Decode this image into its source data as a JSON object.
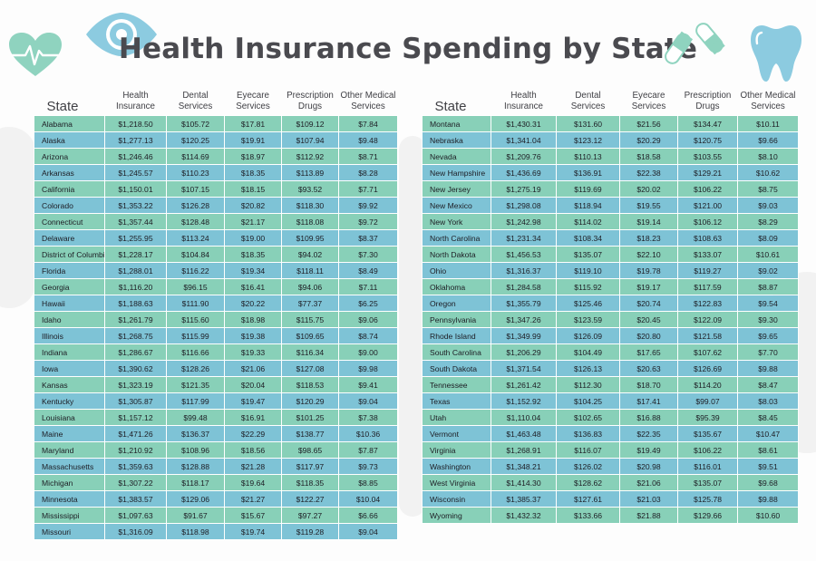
{
  "title": "Health Insurance Spending by State",
  "colors": {
    "row_green": "#88d0b8",
    "row_blue": "#7ec3d6",
    "title": "#4a4a4f",
    "icon_mint": "#8fd3bf",
    "icon_blue": "#8ccbe0"
  },
  "icons": [
    "heart-rate-icon",
    "eye-icon",
    "pills-icon",
    "tooth-icon"
  ],
  "headers": {
    "state": "State",
    "health_1": "Health",
    "health_2": "Insurance",
    "dental_1": "Dental",
    "dental_2": "Services",
    "eyecare_1": "Eyecare",
    "eyecare_2": "Services",
    "rx_1": "Prescription",
    "rx_2": "Drugs",
    "other_1": "Other Medical",
    "other_2": "Services"
  },
  "left_rows": [
    [
      "Alabama",
      "$1,218.50",
      "$105.72",
      "$17.81",
      "$109.12",
      "$7.84"
    ],
    [
      "Alaska",
      "$1,277.13",
      "$120.25",
      "$19.91",
      "$107.94",
      "$9.48"
    ],
    [
      "Arizona",
      "$1,246.46",
      "$114.69",
      "$18.97",
      "$112.92",
      "$8.71"
    ],
    [
      "Arkansas",
      "$1,245.57",
      "$110.23",
      "$18.35",
      "$113.89",
      "$8.28"
    ],
    [
      "California",
      "$1,150.01",
      "$107.15",
      "$18.15",
      "$93.52",
      "$7.71"
    ],
    [
      "Colorado",
      "$1,353.22",
      "$126.28",
      "$20.82",
      "$118.30",
      "$9.92"
    ],
    [
      "Connecticut",
      "$1,357.44",
      "$128.48",
      "$21.17",
      "$118.08",
      "$9.72"
    ],
    [
      "Delaware",
      "$1,255.95",
      "$113.24",
      "$19.00",
      "$109.95",
      "$8.37"
    ],
    [
      "District of Columbia",
      "$1,228.17",
      "$104.84",
      "$18.35",
      "$94.02",
      "$7.30"
    ],
    [
      "Florida",
      "$1,288.01",
      "$116.22",
      "$19.34",
      "$118.11",
      "$8.49"
    ],
    [
      "Georgia",
      "$1,116.20",
      "$96.15",
      "$16.41",
      "$94.06",
      "$7.11"
    ],
    [
      "Hawaii",
      "$1,188.63",
      "$111.90",
      "$20.22",
      "$77.37",
      "$6.25"
    ],
    [
      "Idaho",
      "$1,261.79",
      "$115.60",
      "$18.98",
      "$115.75",
      "$9.06"
    ],
    [
      "Illinois",
      "$1,268.75",
      "$115.99",
      "$19.38",
      "$109.65",
      "$8.74"
    ],
    [
      "Indiana",
      "$1,286.67",
      "$116.66",
      "$19.33",
      "$116.34",
      "$9.00"
    ],
    [
      "Iowa",
      "$1,390.62",
      "$128.26",
      "$21.06",
      "$127.08",
      "$9.98"
    ],
    [
      "Kansas",
      "$1,323.19",
      "$121.35",
      "$20.04",
      "$118.53",
      "$9.41"
    ],
    [
      "Kentucky",
      "$1,305.87",
      "$117.99",
      "$19.47",
      "$120.29",
      "$9.04"
    ],
    [
      "Louisiana",
      "$1,157.12",
      "$99.48",
      "$16.91",
      "$101.25",
      "$7.38"
    ],
    [
      "Maine",
      "$1,471.26",
      "$136.37",
      "$22.29",
      "$138.77",
      "$10.36"
    ],
    [
      "Maryland",
      "$1,210.92",
      "$108.96",
      "$18.56",
      "$98.65",
      "$7.87"
    ],
    [
      "Massachusetts",
      "$1,359.63",
      "$128.88",
      "$21.28",
      "$117.97",
      "$9.73"
    ],
    [
      "Michigan",
      "$1,307.22",
      "$118.17",
      "$19.64",
      "$118.35",
      "$8.85"
    ],
    [
      "Minnesota",
      "$1,383.57",
      "$129.06",
      "$21.27",
      "$122.27",
      "$10.04"
    ],
    [
      "Mississippi",
      "$1,097.63",
      "$91.67",
      "$15.67",
      "$97.27",
      "$6.66"
    ],
    [
      "Missouri",
      "$1,316.09",
      "$118.98",
      "$19.74",
      "$119.28",
      "$9.04"
    ]
  ],
  "right_rows": [
    [
      "Montana",
      "$1,430.31",
      "$131.60",
      "$21.56",
      "$134.47",
      "$10.11"
    ],
    [
      "Nebraska",
      "$1,341.04",
      "$123.12",
      "$20.29",
      "$120.75",
      "$9.66"
    ],
    [
      "Nevada",
      "$1,209.76",
      "$110.13",
      "$18.58",
      "$103.55",
      "$8.10"
    ],
    [
      "New Hampshire",
      "$1,436.69",
      "$136.91",
      "$22.38",
      "$129.21",
      "$10.62"
    ],
    [
      "New Jersey",
      "$1,275.19",
      "$119.69",
      "$20.02",
      "$106.22",
      "$8.75"
    ],
    [
      "New Mexico",
      "$1,298.08",
      "$118.94",
      "$19.55",
      "$121.00",
      "$9.03"
    ],
    [
      "New York",
      "$1,242.98",
      "$114.02",
      "$19.14",
      "$106.12",
      "$8.29"
    ],
    [
      "North Carolina",
      "$1,231.34",
      "$108.34",
      "$18.23",
      "$108.63",
      "$8.09"
    ],
    [
      "North Dakota",
      "$1,456.53",
      "$135.07",
      "$22.10",
      "$133.07",
      "$10.61"
    ],
    [
      "Ohio",
      "$1,316.37",
      "$119.10",
      "$19.78",
      "$119.27",
      "$9.02"
    ],
    [
      "Oklahoma",
      "$1,284.58",
      "$115.92",
      "$19.17",
      "$117.59",
      "$8.87"
    ],
    [
      "Oregon",
      "$1,355.79",
      "$125.46",
      "$20.74",
      "$122.83",
      "$9.54"
    ],
    [
      "Pennsylvania",
      "$1,347.26",
      "$123.59",
      "$20.45",
      "$122.09",
      "$9.30"
    ],
    [
      "Rhode Island",
      "$1,349.99",
      "$126.09",
      "$20.80",
      "$121.58",
      "$9.65"
    ],
    [
      "South Carolina",
      "$1,206.29",
      "$104.49",
      "$17.65",
      "$107.62",
      "$7.70"
    ],
    [
      "South Dakota",
      "$1,371.54",
      "$126.13",
      "$20.63",
      "$126.69",
      "$9.88"
    ],
    [
      "Tennessee",
      "$1,261.42",
      "$112.30",
      "$18.70",
      "$114.20",
      "$8.47"
    ],
    [
      "Texas",
      "$1,152.92",
      "$104.25",
      "$17.41",
      "$99.07",
      "$8.03"
    ],
    [
      "Utah",
      "$1,110.04",
      "$102.65",
      "$16.88",
      "$95.39",
      "$8.45"
    ],
    [
      "Vermont",
      "$1,463.48",
      "$136.83",
      "$22.35",
      "$135.67",
      "$10.47"
    ],
    [
      "Virginia",
      "$1,268.91",
      "$116.07",
      "$19.49",
      "$106.22",
      "$8.61"
    ],
    [
      "Washington",
      "$1,348.21",
      "$126.02",
      "$20.98",
      "$116.01",
      "$9.51"
    ],
    [
      "West Virginia",
      "$1,414.30",
      "$128.62",
      "$21.06",
      "$135.07",
      "$9.68"
    ],
    [
      "Wisconsin",
      "$1,385.37",
      "$127.61",
      "$21.03",
      "$125.78",
      "$9.88"
    ],
    [
      "Wyoming",
      "$1,432.32",
      "$133.66",
      "$21.88",
      "$129.66",
      "$10.60"
    ]
  ]
}
